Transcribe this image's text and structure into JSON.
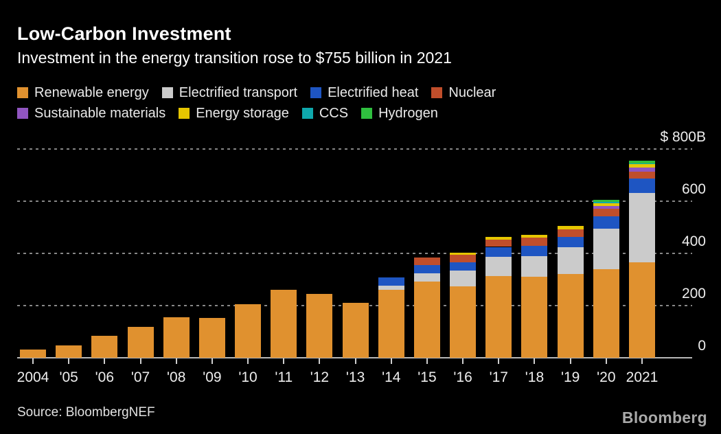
{
  "header": {
    "title": "Low-Carbon Investment",
    "subtitle": "Investment in the energy transition rose to $755 billion in 2021"
  },
  "source": {
    "label": "Source: BloombergNEF"
  },
  "branding": {
    "logo": "Bloomberg"
  },
  "colors": {
    "background": "#000000",
    "title_text": "#ffffff",
    "subtitle_text": "#fdfdfd",
    "legend_text": "#eaeaea",
    "axis_text": "#ededed",
    "gridline": "#878787",
    "axis_line": "#b8b8b8",
    "tick_mark": "#cfcfcf",
    "source_text": "#e2e2e2",
    "logo_text": "#a9a9a9"
  },
  "chart_data": {
    "type": "bar",
    "stacked": true,
    "unit": "$ billion",
    "title": "Low-Carbon Investment",
    "subtitle": "Investment in the energy transition rose to $755 billion in 2021",
    "grid": "dotted horizontal",
    "legend_position": "top",
    "y_axis": {
      "side": "right",
      "max": 800,
      "min": 0,
      "ticks": [
        {
          "label": "$ 800B",
          "value": 800
        },
        {
          "label": "600",
          "value": 600
        },
        {
          "label": "400",
          "value": 400
        },
        {
          "label": "200",
          "value": 200
        },
        {
          "label": "0",
          "value": 0
        }
      ]
    },
    "categories": [
      "2004",
      "'05",
      "'06",
      "'07",
      "'08",
      "'09",
      "'10",
      "'11",
      "'12",
      "'13",
      "'14",
      "'15",
      "'16",
      "'17",
      "'18",
      "'19",
      "'20",
      "2021"
    ],
    "series": [
      {
        "name": "Renewable energy",
        "color": "#E0912F",
        "values": [
          31,
          47,
          83,
          118,
          154,
          152,
          205,
          260,
          245,
          210,
          260,
          292,
          274,
          314,
          311,
          320,
          340,
          366
        ]
      },
      {
        "name": "Electrified transport",
        "color": "#CBCBCB",
        "values": [
          0,
          0,
          0,
          0,
          0,
          0,
          0,
          0,
          0,
          0,
          16,
          31,
          61,
          74,
          79,
          103,
          154,
          265
        ]
      },
      {
        "name": "Electrified heat",
        "color": "#1E55C2",
        "values": [
          0,
          0,
          0,
          0,
          0,
          0,
          0,
          0,
          0,
          0,
          32,
          31,
          31,
          37,
          39,
          39,
          48,
          55
        ]
      },
      {
        "name": "Nuclear",
        "color": "#C04E2B",
        "values": [
          0,
          0,
          0,
          0,
          0,
          0,
          0,
          0,
          0,
          0,
          0,
          29,
          28,
          27,
          31,
          31,
          29,
          28
        ]
      },
      {
        "name": "Sustainable materials",
        "color": "#9055C0",
        "values": [
          0,
          0,
          0,
          0,
          0,
          0,
          0,
          0,
          0,
          0,
          0,
          0,
          0,
          0,
          0,
          0,
          11,
          15
        ]
      },
      {
        "name": "Energy storage",
        "color": "#E6C600",
        "values": [
          0,
          0,
          0,
          0,
          0,
          0,
          0,
          0,
          0,
          0,
          0,
          0,
          9,
          10,
          11,
          13,
          11,
          14
        ]
      },
      {
        "name": "CCS",
        "color": "#0FA8AC",
        "values": [
          0,
          0,
          0,
          0,
          0,
          0,
          0,
          0,
          0,
          0,
          0,
          0,
          0,
          0,
          0,
          0,
          4,
          3
        ]
      },
      {
        "name": "Hydrogen",
        "color": "#2FBF3F",
        "values": [
          0,
          0,
          0,
          0,
          0,
          0,
          0,
          0,
          0,
          0,
          0,
          0,
          0,
          0,
          0,
          0,
          7,
          9
        ]
      }
    ],
    "totals": [
      31,
      47,
      83,
      118,
      154,
      152,
      205,
      260,
      245,
      210,
      308,
      383,
      403,
      462,
      471,
      506,
      604,
      755
    ],
    "legend_rows": [
      [
        "Renewable energy",
        "Electrified transport",
        "Electrified heat",
        "Nuclear"
      ],
      [
        "Sustainable materials",
        "Energy storage",
        "CCS",
        "Hydrogen"
      ]
    ]
  }
}
